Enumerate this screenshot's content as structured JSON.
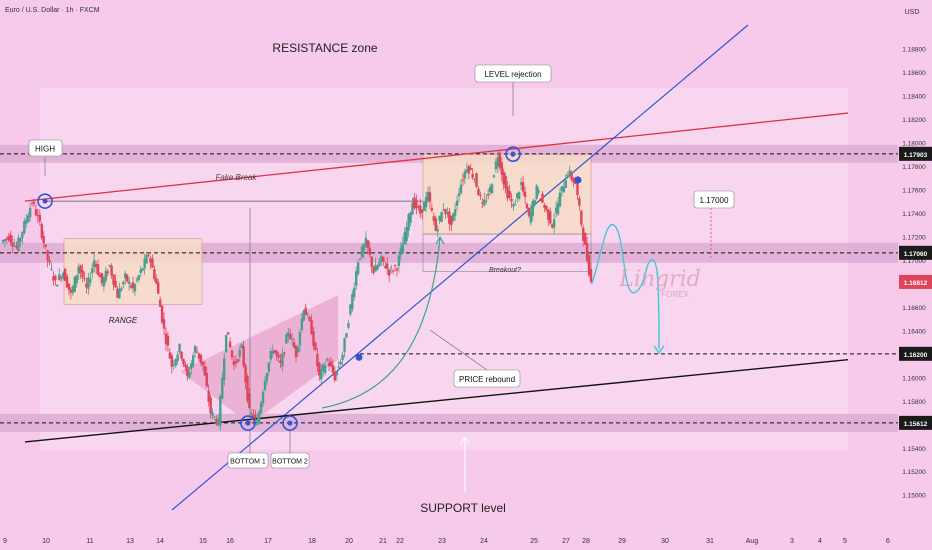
{
  "header": {
    "symbol": "Euro / U.S. Dollar · 1h · FXCM",
    "currency": "USD"
  },
  "colors": {
    "background": "#f7c9ea",
    "panel": "#fbe0f4",
    "zone": "#d9a6d2",
    "orange_box": "#f7dcc8",
    "up": "#4a9e8e",
    "down": "#e0445a",
    "blue_line": "#2f56d6",
    "red_line": "#e0313f",
    "support_line": "#111111",
    "projection": "#3ec8d8",
    "tag_dark": "#1a1a1a",
    "tag_red": "#e0445a"
  },
  "annotations": {
    "resistance_zone": "RESISTANCE zone",
    "support_level": "SUPPORT level",
    "level_rejection": "LEVEL rejection",
    "high": "HIGH",
    "fake_break": "Fake Break",
    "range": "RANGE",
    "breakout": "Breakout?",
    "price_rebound": "PRICE rebound",
    "bottom1": "BOTTOM 1",
    "bottom2": "BOTTOM 2",
    "target_label": "1.17000"
  },
  "watermark": {
    "brand": "Lingrid",
    "sub": "FOREX"
  },
  "chart_data": {
    "type": "candlestick",
    "title": "Euro / U.S. Dollar · 1h · FXCM",
    "y_axis_label": "USD",
    "ylim": [
      1.1487,
      1.19
    ],
    "y_ticks": [
      1.15,
      1.152,
      1.154,
      1.156,
      1.158,
      1.16,
      1.162,
      1.164,
      1.166,
      1.168,
      1.17,
      1.172,
      1.174,
      1.176,
      1.178,
      1.18,
      1.182,
      1.184,
      1.186,
      1.188
    ],
    "x_ticks": [
      "9",
      "10",
      "11",
      "13",
      "14",
      "15",
      "16",
      "17",
      "18",
      "20",
      "21",
      "22",
      "23",
      "24",
      "25",
      "27",
      "28",
      "29",
      "30",
      "31",
      "Aug",
      "3",
      "4",
      "5",
      "6"
    ],
    "price_tags": [
      {
        "value": 1.17903,
        "label": "1.17903",
        "style": "dark"
      },
      {
        "value": 1.1706,
        "label": "1.17060",
        "style": "dark"
      },
      {
        "value": 1.16812,
        "label": "1.16812",
        "style": "red"
      },
      {
        "value": 1.162,
        "label": "1.16200",
        "style": "dark"
      },
      {
        "value": 1.15612,
        "label": "1.15612",
        "style": "dark"
      }
    ],
    "key_points": [
      {
        "name": "HIGH",
        "date": "Jul 10",
        "price": 1.175
      },
      {
        "name": "BOTTOM 1",
        "date": "Jul 16",
        "price": 1.1561
      },
      {
        "name": "BOTTOM 2",
        "date": "Jul 17",
        "price": 1.1561
      },
      {
        "name": "LEVEL rejection",
        "date": "Jul 24",
        "price": 1.179
      },
      {
        "name": "Current",
        "date": "Jul 27",
        "price": 1.16812
      },
      {
        "name": "Projection target",
        "date": "Jul 30",
        "price": 1.162
      }
    ],
    "path_prices": [
      1.1715,
      1.172,
      1.171,
      1.173,
      1.175,
      1.173,
      1.17,
      1.168,
      1.169,
      1.167,
      1.1695,
      1.1675,
      1.17,
      1.168,
      1.1695,
      1.167,
      1.1685,
      1.1675,
      1.169,
      1.1705,
      1.168,
      1.164,
      1.161,
      1.1625,
      1.16,
      1.1625,
      1.161,
      1.157,
      1.1561,
      1.164,
      1.161,
      1.1625,
      1.157,
      1.1561,
      1.16,
      1.1625,
      1.161,
      1.164,
      1.162,
      1.166,
      1.164,
      1.16,
      1.1615,
      1.16,
      1.162,
      1.166,
      1.17,
      1.1715,
      1.169,
      1.17,
      1.169,
      1.1695,
      1.172,
      1.175,
      1.174,
      1.1755,
      1.1725,
      1.1745,
      1.173,
      1.176,
      1.178,
      1.177,
      1.1745,
      1.176,
      1.179,
      1.176,
      1.1745,
      1.1765,
      1.1735,
      1.176,
      1.1745,
      1.173,
      1.1755,
      1.1775,
      1.1765,
      1.172,
      1.16812
    ]
  }
}
